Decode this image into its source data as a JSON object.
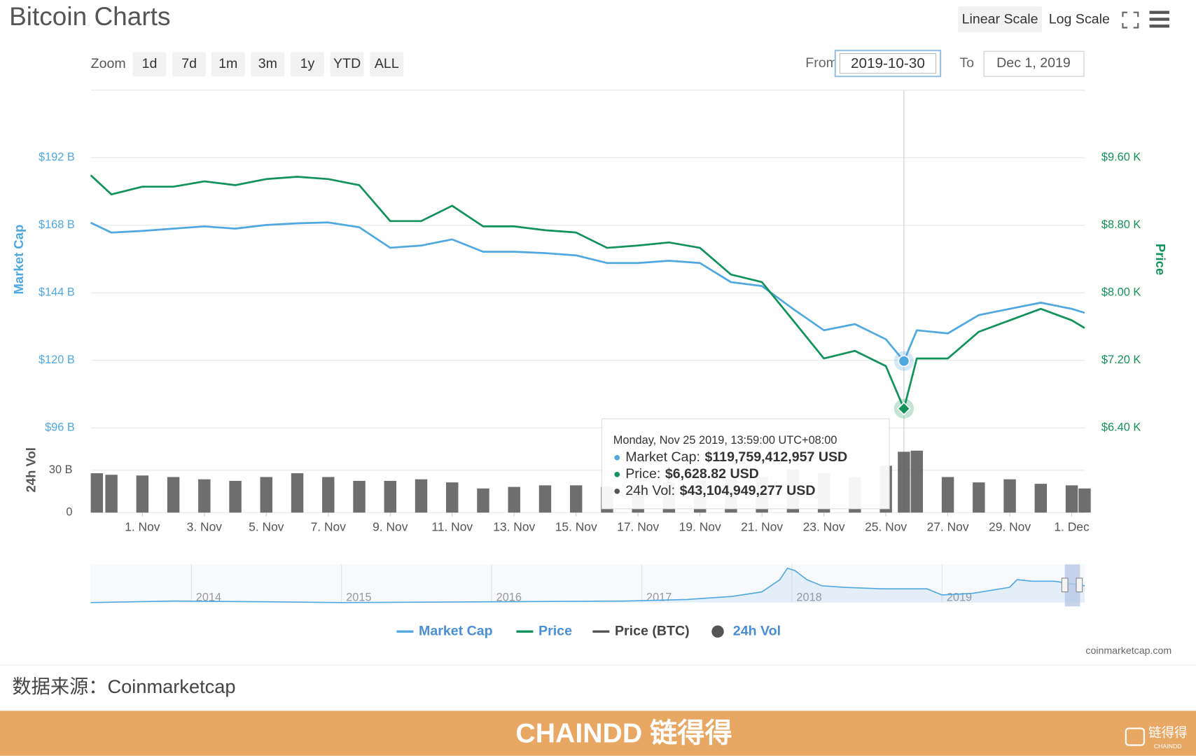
{
  "ui": {
    "title": "Bitcoin Charts",
    "scale_buttons": [
      "Linear Scale",
      "Log Scale"
    ],
    "zoom_label": "Zoom",
    "zoom_buttons": [
      "1d",
      "7d",
      "1m",
      "3m",
      "1y",
      "YTD",
      "ALL"
    ],
    "from_label": "From",
    "from": "2019-10-30",
    "to_label": "To",
    "to": "Dec 1, 2019",
    "credit": "coinmarketcap.com"
  },
  "tooltip": {
    "title": "Monday, Nov 25 2019, 13:59:00 UTC+08:00",
    "rows": [
      {
        "label": "Market Cap:",
        "value": "$119,759,412,957 USD"
      },
      {
        "label": "Price:",
        "value": "$6,628.82 USD"
      },
      {
        "label": "24h Vol:",
        "value": "$43,104,949,277 USD"
      }
    ]
  },
  "chart_data": [
    {
      "type": "line",
      "x": [
        "2019-10-30T08:00",
        "2019-10-31",
        "2019-11-01",
        "2019-11-02",
        "2019-11-03",
        "2019-11-04",
        "2019-11-05",
        "2019-11-06",
        "2019-11-07",
        "2019-11-08",
        "2019-11-09",
        "2019-11-10",
        "2019-11-11",
        "2019-11-12",
        "2019-11-13",
        "2019-11-14",
        "2019-11-15",
        "2019-11-16",
        "2019-11-17",
        "2019-11-18",
        "2019-11-19",
        "2019-11-20",
        "2019-11-21",
        "2019-11-22",
        "2019-11-23",
        "2019-11-24",
        "2019-11-25",
        "2019-11-25T13:59",
        "2019-11-26",
        "2019-11-27",
        "2019-11-28",
        "2019-11-29",
        "2019-11-30",
        "2019-12-01",
        "2019-12-01T10:00"
      ],
      "xlim": [
        "2019-10-30T08:00",
        "2019-12-01T10:00"
      ],
      "xticks": [
        {
          "value": "2019-11-01",
          "label": "1. Nov"
        },
        {
          "value": "2019-11-03",
          "label": "3. Nov"
        },
        {
          "value": "2019-11-05",
          "label": "5. Nov"
        },
        {
          "value": "2019-11-07",
          "label": "7. Nov"
        },
        {
          "value": "2019-11-09",
          "label": "9. Nov"
        },
        {
          "value": "2019-11-11",
          "label": "11. Nov"
        },
        {
          "value": "2019-11-13",
          "label": "13. Nov"
        },
        {
          "value": "2019-11-15",
          "label": "15. Nov"
        },
        {
          "value": "2019-11-17",
          "label": "17. Nov"
        },
        {
          "value": "2019-11-19",
          "label": "19. Nov"
        },
        {
          "value": "2019-11-21",
          "label": "21. Nov"
        },
        {
          "value": "2019-11-23",
          "label": "23. Nov"
        },
        {
          "value": "2019-11-25",
          "label": "25. Nov"
        },
        {
          "value": "2019-11-27",
          "label": "27. Nov"
        },
        {
          "value": "2019-11-29",
          "label": "29. Nov"
        },
        {
          "value": "2019-12-01",
          "label": "1. Dec"
        }
      ],
      "ylabel": "Market Cap",
      "y2label": "Price",
      "ylim": [
        96,
        216
      ],
      "yticks": [
        {
          "value": 96,
          "label": "$96 B"
        },
        {
          "value": 120,
          "label": "$120 B"
        },
        {
          "value": 144,
          "label": "$144 B"
        },
        {
          "value": 168,
          "label": "$168 B"
        },
        {
          "value": 192,
          "label": "$192 B"
        }
      ],
      "y2lim": [
        6400,
        10400
      ],
      "y2ticks": [
        {
          "value": 6400,
          "label": "$6.40 K"
        },
        {
          "value": 7200,
          "label": "$7.20 K"
        },
        {
          "value": 8000,
          "label": "$8.00 K"
        },
        {
          "value": 8800,
          "label": "$8.80 K"
        },
        {
          "value": 9600,
          "label": "$9.60 K"
        }
      ],
      "grid": true,
      "crosshair": "2019-11-25T13:59",
      "series": [
        {
          "name": "Market Cap",
          "color": "#4fa8e0",
          "values": [
            168.9,
            165.4,
            166.0,
            166.8,
            167.6,
            166.8,
            168.1,
            168.7,
            169.0,
            167.3,
            160.0,
            160.8,
            163.0,
            158.6,
            158.6,
            158.1,
            157.3,
            154.6,
            154.6,
            155.4,
            154.6,
            147.8,
            146.4,
            138.3,
            130.7,
            132.9,
            127.5,
            119.759412957,
            130.7,
            129.6,
            136.1,
            138.3,
            140.5,
            138.3,
            136.9
          ]
        },
        {
          "name": "Price",
          "color": "#12925b",
          "axis": "y2",
          "values": [
            9392,
            9166,
            9257,
            9257,
            9320,
            9275,
            9347,
            9374,
            9347,
            9275,
            8850,
            8850,
            9031,
            8787,
            8787,
            8741,
            8714,
            8533,
            8560,
            8597,
            8533,
            8217,
            8127,
            7675,
            7223,
            7313,
            7132,
            6628.82,
            7223,
            7223,
            7539,
            7675,
            7810,
            7675,
            7584
          ]
        }
      ],
      "legend_extra": [
        {
          "name": "Price (BTC)",
          "color": "#555555"
        }
      ]
    },
    {
      "type": "bar",
      "x": [
        "2019-10-30T08:00",
        "2019-10-31",
        "2019-11-01",
        "2019-11-02",
        "2019-11-03",
        "2019-11-04",
        "2019-11-05",
        "2019-11-06",
        "2019-11-07",
        "2019-11-08",
        "2019-11-09",
        "2019-11-10",
        "2019-11-11",
        "2019-11-12",
        "2019-11-13",
        "2019-11-14",
        "2019-11-15",
        "2019-11-16",
        "2019-11-17",
        "2019-11-18",
        "2019-11-19",
        "2019-11-20",
        "2019-11-21",
        "2019-11-22",
        "2019-11-23",
        "2019-11-24",
        "2019-11-25",
        "2019-11-25T13:59",
        "2019-11-26",
        "2019-11-27",
        "2019-11-28",
        "2019-11-29",
        "2019-11-30",
        "2019-12-01",
        "2019-12-01T10:00"
      ],
      "xlim": [
        "2019-10-30T08:00",
        "2019-12-01T10:00"
      ],
      "ylabel": "24h Vol",
      "ylim": [
        0,
        60
      ],
      "yticks": [
        0,
        {
          "value": 30,
          "label": "30 B"
        }
      ],
      "series": [
        {
          "name": "24h Vol",
          "color": "#555555",
          "values": [
            27.9,
            26.8,
            26.3,
            25.2,
            23.6,
            22.5,
            25.2,
            27.9,
            25.2,
            22.5,
            22.5,
            23.6,
            21.4,
            17.1,
            18.2,
            19.3,
            19.3,
            18.2,
            19.8,
            21.4,
            22.5,
            23.6,
            25.2,
            30.5,
            27.9,
            25.2,
            33.2,
            43.104949277,
            43.9,
            25.2,
            21.4,
            23.6,
            20.4,
            19.3,
            17.1
          ]
        }
      ]
    },
    {
      "type": "area",
      "x": [
        2013.33,
        2013.9,
        2014.5,
        2015,
        2016,
        2016.9,
        2017.3,
        2017.6,
        2017.8,
        2017.92,
        2017.97,
        2018.02,
        2018.1,
        2018.2,
        2018.35,
        2018.6,
        2018.9,
        2019.0,
        2019.2,
        2019.45,
        2019.5,
        2019.6,
        2019.75,
        2019.85,
        2019.95
      ],
      "values": [
        0,
        40,
        20,
        0,
        20,
        40,
        80,
        160,
        280,
        600,
        900,
        840,
        600,
        440,
        400,
        360,
        360,
        200,
        240,
        400,
        600,
        560,
        560,
        500,
        440
      ],
      "xlim": [
        2013.33,
        2019.95
      ],
      "ylim": [
        0,
        1000
      ],
      "xticks": [
        2014,
        2015,
        2016,
        2017,
        2018,
        2019
      ],
      "color": "#4fa8e0"
    }
  ],
  "source": "数据来源：Coinmarketcap",
  "footer": {
    "brand": "CHAINDD 链得得",
    "watermark": "链得得",
    "watermark_sub": "CHAINDD"
  }
}
